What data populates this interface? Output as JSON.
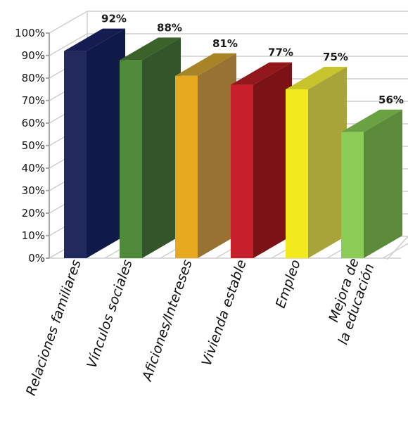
{
  "chart_data": {
    "type": "bar",
    "style": "3d-column",
    "categories": [
      [
        "Relaciones familiares"
      ],
      [
        "Vínculos sociales"
      ],
      [
        "Aficiones/Intereses"
      ],
      [
        "Vivienda estable"
      ],
      [
        "Empleo"
      ],
      [
        "Mejora de",
        "la educación"
      ]
    ],
    "values": [
      92,
      88,
      81,
      77,
      75,
      56
    ],
    "data_labels": [
      "92%",
      "88%",
      "81%",
      "77%",
      "75%",
      "56%"
    ],
    "y_ticks": [
      "0%",
      "10%",
      "20%",
      "30%",
      "40%",
      "50%",
      "60%",
      "70%",
      "80%",
      "90%",
      "100%"
    ],
    "ylim": [
      0,
      100
    ],
    "grid": true,
    "legend": "none",
    "colors": {
      "front": [
        "#22295c",
        "#4f8a3a",
        "#e7a91f",
        "#c8202a",
        "#f2ea1c",
        "#8bcd56"
      ],
      "side": [
        "#101a48",
        "#33552a",
        "#977233",
        "#7b1316",
        "#a9a43a",
        "#5a8a3a"
      ],
      "top": [
        "#141c52",
        "#3a6229",
        "#a78425",
        "#92171b",
        "#c7c42c",
        "#6aa243"
      ],
      "gridline": "#cfcfcf",
      "axis": "#8a8a8a"
    }
  }
}
